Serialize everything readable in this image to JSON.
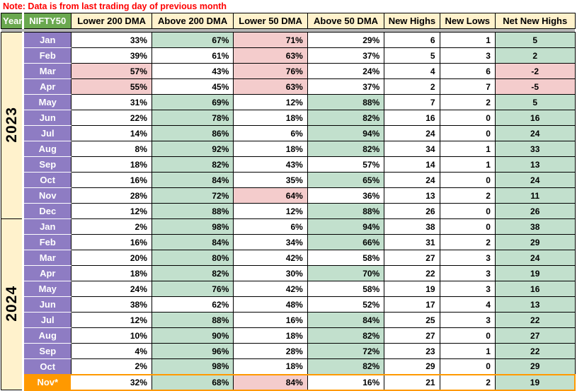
{
  "note": "Note: Data is from last trading day of previous month",
  "header": {
    "year": "Year",
    "nifty": "NIFTY50",
    "columns": [
      "Lower 200 DMA",
      "Above 200 DMA",
      "Lower 50 DMA",
      "Above 50 DMA",
      "New Highs",
      "New Lows",
      "Net New Highs"
    ]
  },
  "colors": {
    "header_green": "#6aa84f",
    "header_cream": "#fff2cc",
    "month_purple": "#8e7cc3",
    "cell_green": "#c2e0cd",
    "cell_pink": "#f4cccc",
    "highlight_orange": "#ff9900",
    "divider_gray": "#b7b7b7",
    "note_red": "#fe0000"
  },
  "years": [
    {
      "label": "2023",
      "months": [
        {
          "month": "Jan",
          "highlight": false,
          "cells": [
            {
              "v": "33%",
              "bg": "w"
            },
            {
              "v": "67%",
              "bg": "g"
            },
            {
              "v": "71%",
              "bg": "p"
            },
            {
              "v": "29%",
              "bg": "w"
            },
            {
              "v": "6",
              "bg": "w"
            },
            {
              "v": "1",
              "bg": "w"
            },
            {
              "v": "5",
              "bg": "g"
            }
          ]
        },
        {
          "month": "Feb",
          "highlight": false,
          "cells": [
            {
              "v": "39%",
              "bg": "w"
            },
            {
              "v": "61%",
              "bg": "w"
            },
            {
              "v": "63%",
              "bg": "p"
            },
            {
              "v": "37%",
              "bg": "w"
            },
            {
              "v": "5",
              "bg": "w"
            },
            {
              "v": "3",
              "bg": "w"
            },
            {
              "v": "2",
              "bg": "g"
            }
          ]
        },
        {
          "month": "Mar",
          "highlight": false,
          "cells": [
            {
              "v": "57%",
              "bg": "p"
            },
            {
              "v": "43%",
              "bg": "w"
            },
            {
              "v": "76%",
              "bg": "p"
            },
            {
              "v": "24%",
              "bg": "w"
            },
            {
              "v": "4",
              "bg": "w"
            },
            {
              "v": "6",
              "bg": "w"
            },
            {
              "v": "-2",
              "bg": "p"
            }
          ]
        },
        {
          "month": "Apr",
          "highlight": false,
          "cells": [
            {
              "v": "55%",
              "bg": "p"
            },
            {
              "v": "45%",
              "bg": "w"
            },
            {
              "v": "63%",
              "bg": "p"
            },
            {
              "v": "37%",
              "bg": "w"
            },
            {
              "v": "2",
              "bg": "w"
            },
            {
              "v": "7",
              "bg": "w"
            },
            {
              "v": "-5",
              "bg": "p"
            }
          ]
        },
        {
          "month": "May",
          "highlight": false,
          "cells": [
            {
              "v": "31%",
              "bg": "w"
            },
            {
              "v": "69%",
              "bg": "g"
            },
            {
              "v": "12%",
              "bg": "w"
            },
            {
              "v": "88%",
              "bg": "g"
            },
            {
              "v": "7",
              "bg": "w"
            },
            {
              "v": "2",
              "bg": "w"
            },
            {
              "v": "5",
              "bg": "g"
            }
          ]
        },
        {
          "month": "Jun",
          "highlight": false,
          "cells": [
            {
              "v": "22%",
              "bg": "w"
            },
            {
              "v": "78%",
              "bg": "g"
            },
            {
              "v": "18%",
              "bg": "w"
            },
            {
              "v": "82%",
              "bg": "g"
            },
            {
              "v": "16",
              "bg": "w"
            },
            {
              "v": "0",
              "bg": "w"
            },
            {
              "v": "16",
              "bg": "g"
            }
          ]
        },
        {
          "month": "Jul",
          "highlight": false,
          "cells": [
            {
              "v": "14%",
              "bg": "w"
            },
            {
              "v": "86%",
              "bg": "g"
            },
            {
              "v": "6%",
              "bg": "w"
            },
            {
              "v": "94%",
              "bg": "g"
            },
            {
              "v": "24",
              "bg": "w"
            },
            {
              "v": "0",
              "bg": "w"
            },
            {
              "v": "24",
              "bg": "g"
            }
          ]
        },
        {
          "month": "Aug",
          "highlight": false,
          "cells": [
            {
              "v": "8%",
              "bg": "w"
            },
            {
              "v": "92%",
              "bg": "g"
            },
            {
              "v": "18%",
              "bg": "w"
            },
            {
              "v": "82%",
              "bg": "g"
            },
            {
              "v": "34",
              "bg": "w"
            },
            {
              "v": "1",
              "bg": "w"
            },
            {
              "v": "33",
              "bg": "g"
            }
          ]
        },
        {
          "month": "Sep",
          "highlight": false,
          "cells": [
            {
              "v": "18%",
              "bg": "w"
            },
            {
              "v": "82%",
              "bg": "g"
            },
            {
              "v": "43%",
              "bg": "w"
            },
            {
              "v": "57%",
              "bg": "w"
            },
            {
              "v": "14",
              "bg": "w"
            },
            {
              "v": "1",
              "bg": "w"
            },
            {
              "v": "13",
              "bg": "g"
            }
          ]
        },
        {
          "month": "Oct",
          "highlight": false,
          "cells": [
            {
              "v": "16%",
              "bg": "w"
            },
            {
              "v": "84%",
              "bg": "g"
            },
            {
              "v": "35%",
              "bg": "w"
            },
            {
              "v": "65%",
              "bg": "g"
            },
            {
              "v": "24",
              "bg": "w"
            },
            {
              "v": "0",
              "bg": "w"
            },
            {
              "v": "24",
              "bg": "g"
            }
          ]
        },
        {
          "month": "Nov",
          "highlight": false,
          "cells": [
            {
              "v": "28%",
              "bg": "w"
            },
            {
              "v": "72%",
              "bg": "g"
            },
            {
              "v": "64%",
              "bg": "p"
            },
            {
              "v": "36%",
              "bg": "w"
            },
            {
              "v": "13",
              "bg": "w"
            },
            {
              "v": "2",
              "bg": "w"
            },
            {
              "v": "11",
              "bg": "g"
            }
          ]
        },
        {
          "month": "Dec",
          "highlight": false,
          "cells": [
            {
              "v": "12%",
              "bg": "w"
            },
            {
              "v": "88%",
              "bg": "g"
            },
            {
              "v": "12%",
              "bg": "w"
            },
            {
              "v": "88%",
              "bg": "g"
            },
            {
              "v": "26",
              "bg": "w"
            },
            {
              "v": "0",
              "bg": "w"
            },
            {
              "v": "26",
              "bg": "g"
            }
          ]
        }
      ]
    },
    {
      "label": "2024",
      "months": [
        {
          "month": "Jan",
          "highlight": false,
          "cells": [
            {
              "v": "2%",
              "bg": "w"
            },
            {
              "v": "98%",
              "bg": "g"
            },
            {
              "v": "6%",
              "bg": "w"
            },
            {
              "v": "94%",
              "bg": "g"
            },
            {
              "v": "38",
              "bg": "w"
            },
            {
              "v": "0",
              "bg": "w"
            },
            {
              "v": "38",
              "bg": "g"
            }
          ]
        },
        {
          "month": "Feb",
          "highlight": false,
          "cells": [
            {
              "v": "16%",
              "bg": "w"
            },
            {
              "v": "84%",
              "bg": "g"
            },
            {
              "v": "34%",
              "bg": "w"
            },
            {
              "v": "66%",
              "bg": "g"
            },
            {
              "v": "31",
              "bg": "w"
            },
            {
              "v": "2",
              "bg": "w"
            },
            {
              "v": "29",
              "bg": "g"
            }
          ]
        },
        {
          "month": "Mar",
          "highlight": false,
          "cells": [
            {
              "v": "20%",
              "bg": "w"
            },
            {
              "v": "80%",
              "bg": "g"
            },
            {
              "v": "42%",
              "bg": "w"
            },
            {
              "v": "58%",
              "bg": "w"
            },
            {
              "v": "27",
              "bg": "w"
            },
            {
              "v": "3",
              "bg": "w"
            },
            {
              "v": "24",
              "bg": "g"
            }
          ]
        },
        {
          "month": "Apr",
          "highlight": false,
          "cells": [
            {
              "v": "18%",
              "bg": "w"
            },
            {
              "v": "82%",
              "bg": "g"
            },
            {
              "v": "30%",
              "bg": "w"
            },
            {
              "v": "70%",
              "bg": "g"
            },
            {
              "v": "22",
              "bg": "w"
            },
            {
              "v": "3",
              "bg": "w"
            },
            {
              "v": "19",
              "bg": "g"
            }
          ]
        },
        {
          "month": "May",
          "highlight": false,
          "cells": [
            {
              "v": "24%",
              "bg": "w"
            },
            {
              "v": "76%",
              "bg": "g"
            },
            {
              "v": "42%",
              "bg": "w"
            },
            {
              "v": "58%",
              "bg": "w"
            },
            {
              "v": "19",
              "bg": "w"
            },
            {
              "v": "3",
              "bg": "w"
            },
            {
              "v": "16",
              "bg": "g"
            }
          ]
        },
        {
          "month": "Jun",
          "highlight": false,
          "cells": [
            {
              "v": "38%",
              "bg": "w"
            },
            {
              "v": "62%",
              "bg": "w"
            },
            {
              "v": "48%",
              "bg": "w"
            },
            {
              "v": "52%",
              "bg": "w"
            },
            {
              "v": "17",
              "bg": "w"
            },
            {
              "v": "4",
              "bg": "w"
            },
            {
              "v": "13",
              "bg": "g"
            }
          ]
        },
        {
          "month": "Jul",
          "highlight": false,
          "cells": [
            {
              "v": "12%",
              "bg": "w"
            },
            {
              "v": "88%",
              "bg": "g"
            },
            {
              "v": "16%",
              "bg": "w"
            },
            {
              "v": "84%",
              "bg": "g"
            },
            {
              "v": "25",
              "bg": "w"
            },
            {
              "v": "3",
              "bg": "w"
            },
            {
              "v": "22",
              "bg": "g"
            }
          ]
        },
        {
          "month": "Aug",
          "highlight": false,
          "cells": [
            {
              "v": "10%",
              "bg": "w"
            },
            {
              "v": "90%",
              "bg": "g"
            },
            {
              "v": "18%",
              "bg": "w"
            },
            {
              "v": "82%",
              "bg": "g"
            },
            {
              "v": "27",
              "bg": "w"
            },
            {
              "v": "0",
              "bg": "w"
            },
            {
              "v": "27",
              "bg": "g"
            }
          ]
        },
        {
          "month": "Sep",
          "highlight": false,
          "cells": [
            {
              "v": "4%",
              "bg": "w"
            },
            {
              "v": "96%",
              "bg": "g"
            },
            {
              "v": "28%",
              "bg": "w"
            },
            {
              "v": "72%",
              "bg": "g"
            },
            {
              "v": "23",
              "bg": "w"
            },
            {
              "v": "1",
              "bg": "w"
            },
            {
              "v": "22",
              "bg": "g"
            }
          ]
        },
        {
          "month": "Oct",
          "highlight": false,
          "cells": [
            {
              "v": "2%",
              "bg": "w"
            },
            {
              "v": "98%",
              "bg": "g"
            },
            {
              "v": "18%",
              "bg": "w"
            },
            {
              "v": "82%",
              "bg": "g"
            },
            {
              "v": "29",
              "bg": "w"
            },
            {
              "v": "0",
              "bg": "w"
            },
            {
              "v": "29",
              "bg": "g"
            }
          ]
        },
        {
          "month": "Nov*",
          "highlight": true,
          "cells": [
            {
              "v": "32%",
              "bg": "w"
            },
            {
              "v": "68%",
              "bg": "g"
            },
            {
              "v": "84%",
              "bg": "p"
            },
            {
              "v": "16%",
              "bg": "w"
            },
            {
              "v": "21",
              "bg": "w"
            },
            {
              "v": "2",
              "bg": "w"
            },
            {
              "v": "19",
              "bg": "g"
            }
          ]
        }
      ]
    }
  ]
}
